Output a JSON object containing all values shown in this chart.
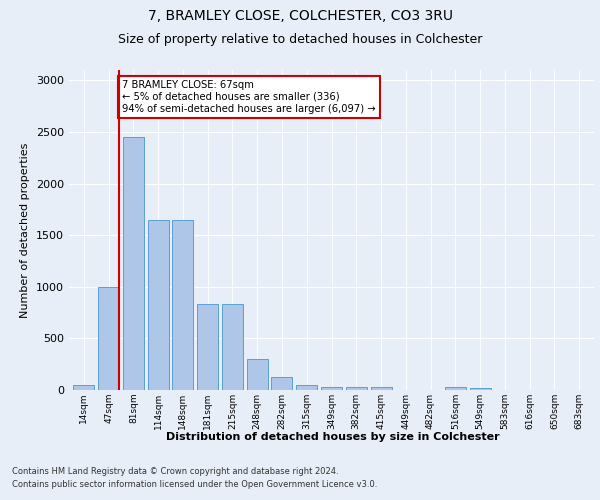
{
  "title_line1": "7, BRAMLEY CLOSE, COLCHESTER, CO3 3RU",
  "title_line2": "Size of property relative to detached houses in Colchester",
  "xlabel": "Distribution of detached houses by size in Colchester",
  "ylabel": "Number of detached properties",
  "categories": [
    "14sqm",
    "47sqm",
    "81sqm",
    "114sqm",
    "148sqm",
    "181sqm",
    "215sqm",
    "248sqm",
    "282sqm",
    "315sqm",
    "349sqm",
    "382sqm",
    "415sqm",
    "449sqm",
    "482sqm",
    "516sqm",
    "549sqm",
    "583sqm",
    "616sqm",
    "650sqm",
    "683sqm"
  ],
  "values": [
    50,
    1000,
    2450,
    1650,
    1650,
    830,
    830,
    300,
    130,
    45,
    30,
    30,
    25,
    0,
    0,
    30,
    20,
    0,
    0,
    0,
    0
  ],
  "bar_color": "#aec6e8",
  "bar_edge_color": "#5a9fd4",
  "annotation_text": "7 BRAMLEY CLOSE: 67sqm\n← 5% of detached houses are smaller (336)\n94% of semi-detached houses are larger (6,097) →",
  "annotation_box_color": "#ffffff",
  "annotation_box_edge": "#cc0000",
  "ylim": [
    0,
    3100
  ],
  "yticks": [
    0,
    500,
    1000,
    1500,
    2000,
    2500,
    3000
  ],
  "footer_line1": "Contains HM Land Registry data © Crown copyright and database right 2024.",
  "footer_line2": "Contains public sector information licensed under the Open Government Licence v3.0.",
  "bg_color": "#e8eef7",
  "plot_bg_color": "#e8eef7"
}
